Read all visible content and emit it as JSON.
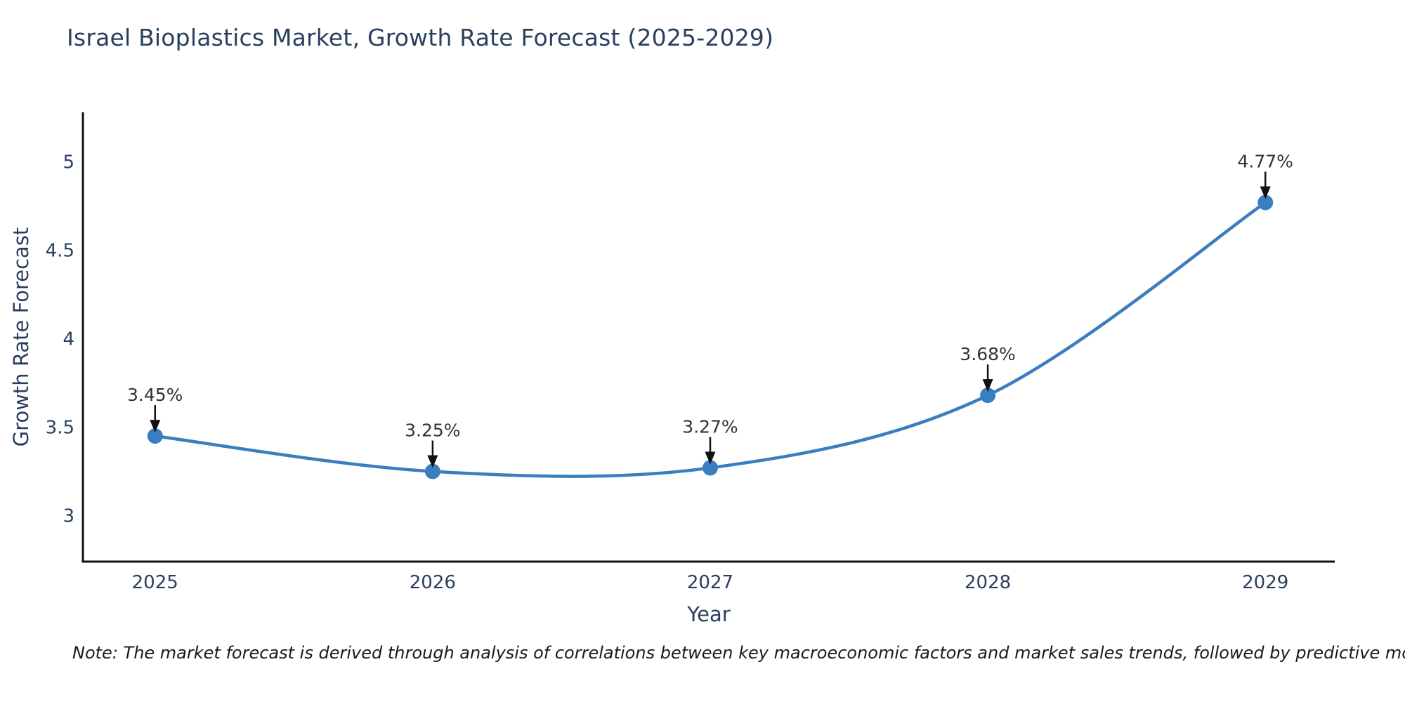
{
  "page": {
    "background": "#ffffff"
  },
  "chart_data": {
    "type": "line",
    "title": "Israel Bioplastics Market, Growth Rate Forecast (2025-2029)",
    "xlabel": "Year",
    "ylabel": "Growth Rate Forecast",
    "categories": [
      2025,
      2026,
      2027,
      2028,
      2029
    ],
    "series": [
      {
        "name": "Growth Rate Forecast",
        "values": [
          3.45,
          3.25,
          3.27,
          3.68,
          4.77
        ],
        "point_labels": [
          "3.45%",
          "3.25%",
          "3.27%",
          "3.68%",
          "4.77%"
        ]
      }
    ],
    "line_shape": "spline",
    "markers": true,
    "grid": false,
    "legend": "none",
    "xticks": [
      "2025",
      "2026",
      "2027",
      "2028",
      "2029"
    ],
    "yticks": [
      3,
      3.5,
      4,
      4.5,
      5
    ],
    "ytick_labels": [
      "3",
      "3.5",
      "4",
      "4.5",
      "5"
    ],
    "xlim": [
      2024.74,
      2029.25
    ],
    "ylim": [
      2.74,
      5.28
    ],
    "colors": {
      "line": "#3a7ebf",
      "marker": "#3a7ebf",
      "title_text": "#2a3f5f",
      "tick_text": "#2a3f5f",
      "annotation_text": "#333333",
      "axis_line": "#111111",
      "arrow": "#111111",
      "note_text": "#1a1a1a"
    },
    "note": "Note: The market forecast is derived through analysis of correlations between key macroeconomic factors and market sales trends, followed by predictive modeling to project future sales"
  }
}
